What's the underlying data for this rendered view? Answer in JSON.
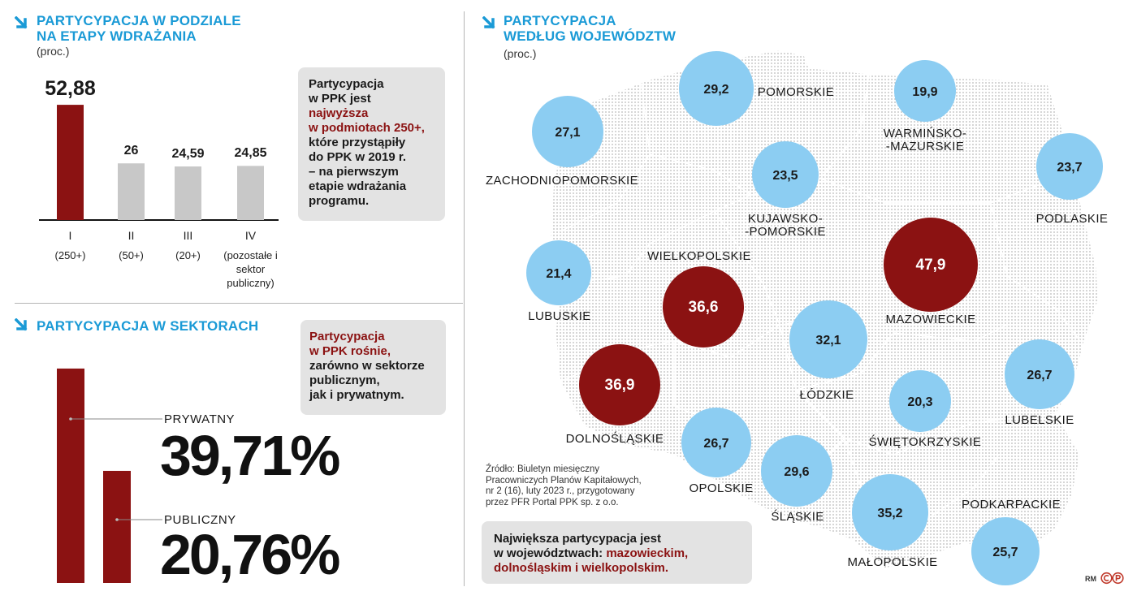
{
  "left_top": {
    "title_line1": "PARTYCYPACJA W PODZIALE",
    "title_line2": "NA ETAPY WDRAŻANIA",
    "unit": "(proc.)",
    "note": {
      "l1": "Partycypacja",
      "l2": "w PPK jest",
      "l3_red": "najwyższa",
      "l4_red": "w podmiotach 250+,",
      "l5": "które przystąpiły",
      "l6": "do PPK w 2019 r.",
      "l7": "– na pierwszym",
      "l8": "etapie wdrażania",
      "l9": "programu."
    }
  },
  "left_bottom": {
    "title": "PARTYCYPACJA W SEKTORACH",
    "note": {
      "l1_red": "Partycypacja",
      "l2_red": "w PPK rośnie,",
      "l3": "zarówno w sektorze",
      "l4": "publicznym,",
      "l5": "jak i prywatnym."
    }
  },
  "right": {
    "title_line1": "PARTYCYPACJA",
    "title_line2": "WEDŁUG WOJEWÓDZTW",
    "unit": "(proc.)",
    "source": {
      "l1": "Źródło: Biuletyn miesięczny",
      "l2": "Pracowniczych Planów Kapitałowych,",
      "l3": "nr 2 (16), luty 2023 r., przygotowany",
      "l4": "przez PFR Portal PPK sp. z o.o."
    },
    "note": {
      "l1": "Największa partycypacja jest",
      "l2a": "w województwach: ",
      "l2b_red": "mazowieckim,",
      "l3_red": "dolnośląskim i wielkopolskim."
    },
    "credit": "RM"
  },
  "colors": {
    "accent_blue": "#1a9ad6",
    "dark_red": "#8b1212",
    "light_blue": "#8ccdf2",
    "grey_bar": "#c8c8c8",
    "note_bg": "#e3e3e3"
  },
  "chart_data": [
    {
      "type": "bar",
      "title": "PARTYCYPACJA W PODZIALE NA ETAPY WDRAŻANIA",
      "unit": "(proc.)",
      "categories": [
        "I",
        "II",
        "III",
        "IV"
      ],
      "category_subtitles": [
        "(250+)",
        "(50+)",
        "(20+)",
        "(pozostałe i sektor publiczny)"
      ],
      "values": [
        52.88,
        26,
        24.59,
        24.85
      ],
      "value_labels": [
        "52,88",
        "26",
        "24,59",
        "24,85"
      ],
      "ylim": [
        0,
        55
      ]
    },
    {
      "type": "bar",
      "title": "PARTYCYPACJA W SEKTORACH",
      "categories": [
        "PRYWATNY",
        "PUBLICZNY"
      ],
      "values": [
        39.71,
        20.76
      ],
      "value_labels": [
        "39,71%",
        "20,76%"
      ],
      "ylim": [
        0,
        50
      ]
    },
    {
      "type": "bubble-map",
      "title": "PARTYCYPACJA WEDŁUG WOJEWÓDZTW",
      "unit": "(proc.)",
      "regions": [
        {
          "name": "POMORSKIE",
          "value": 29.2,
          "label": "29,2"
        },
        {
          "name": "WARMIŃSKO-\n-MAZURSKIE",
          "value": 19.9,
          "label": "19,9"
        },
        {
          "name": "ZACHODNIOPOMORSKIE",
          "value": 27.1,
          "label": "27,1"
        },
        {
          "name": "KUJAWSKO-\n-POMORSKIE",
          "value": 23.5,
          "label": "23,5"
        },
        {
          "name": "PODLASKIE",
          "value": 23.7,
          "label": "23,7"
        },
        {
          "name": "WIELKOPOLSKIE",
          "value": 36.6,
          "label": "36,6",
          "highlight": true
        },
        {
          "name": "MAZOWIECKIE",
          "value": 47.9,
          "label": "47,9",
          "highlight": true
        },
        {
          "name": "LUBUSKIE",
          "value": 21.4,
          "label": "21,4"
        },
        {
          "name": "ŁÓDZKIE",
          "value": 32.1,
          "label": "32,1"
        },
        {
          "name": "DOLNOŚLĄSKIE",
          "value": 36.9,
          "label": "36,9",
          "highlight": true
        },
        {
          "name": "LUBELSKIE",
          "value": 26.7,
          "label": "26,7"
        },
        {
          "name": "ŚWIĘTOKRZYSKIE",
          "value": 20.3,
          "label": "20,3"
        },
        {
          "name": "OPOLSKIE",
          "value": 26.7,
          "label": "26,7"
        },
        {
          "name": "ŚLĄSKIE",
          "value": 29.6,
          "label": "29,6"
        },
        {
          "name": "MAŁOPOLSKIE",
          "value": 35.2,
          "label": "35,2"
        },
        {
          "name": "PODKARPACKIE",
          "value": 25.7,
          "label": "25,7"
        }
      ]
    }
  ]
}
